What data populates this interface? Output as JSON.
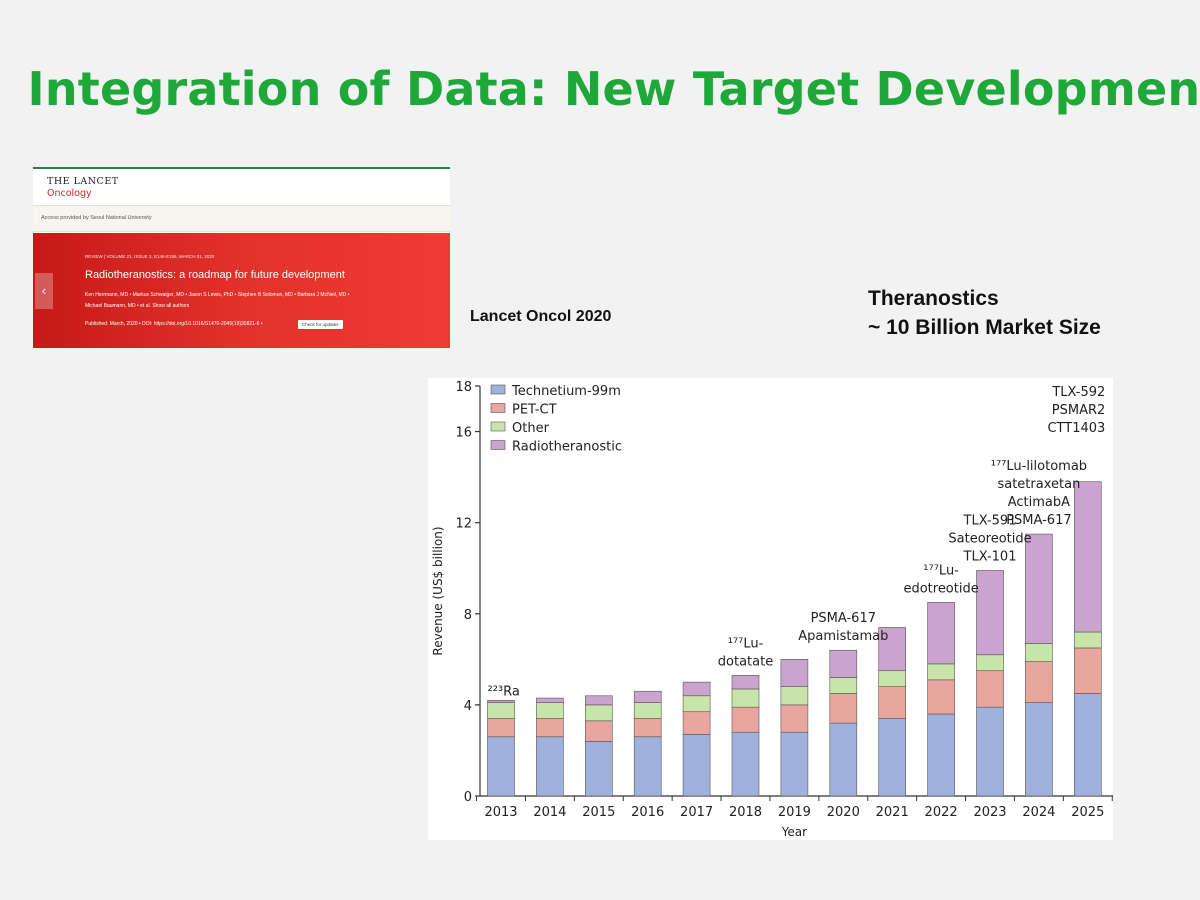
{
  "slide": {
    "title": "Integration of Data: New Target Development",
    "citation": "Lancet Oncol 2020",
    "market_line1": "Theranostics",
    "market_line2": "~ 10 Billion Market Size"
  },
  "lancet": {
    "brand": "THE LANCET",
    "brand_sub": "Oncology",
    "access": "Access provided by Seoul National University",
    "meta": "REVIEW | VOLUME 21, ISSUE 3, E146-E156, MARCH 01, 2020",
    "article_title": "Radiotheranostics: a roadmap for future development",
    "authors1": "Ken Herrmann, MD • Markus Schwaiger, MD • Jason S Lewis, PhD • Stephen B Solomon, MD • Barbara J McNeil, MD •",
    "authors2": "Michael Baumann, MD • et al.  Show all authors",
    "published": "Published: March, 2020 • DOI: https://doi.org/10.1016/S1470-2045(19)30821-6 •",
    "check_button": "Check for updates",
    "arrow": "‹"
  },
  "colors": {
    "title_green": "#1ea83a",
    "technetium": "#9fb1dc",
    "pet_ct": "#e9a69e",
    "other": "#c8e5a9",
    "radiotheranostic": "#caa3cf",
    "lancet_red": "#e3312b"
  },
  "chart_data": {
    "type": "bar",
    "stacked": true,
    "categories": [
      "2013",
      "2014",
      "2015",
      "2016",
      "2017",
      "2018",
      "2019",
      "2020",
      "2021",
      "2022",
      "2023",
      "2024",
      "2025"
    ],
    "series": [
      {
        "name": "Technetium-99m",
        "values": [
          2.6,
          2.6,
          2.4,
          2.6,
          2.7,
          2.8,
          2.8,
          3.2,
          3.4,
          3.6,
          3.9,
          4.1,
          4.5
        ]
      },
      {
        "name": "PET-CT",
        "values": [
          0.8,
          0.8,
          0.9,
          0.8,
          1.0,
          1.1,
          1.2,
          1.3,
          1.4,
          1.5,
          1.6,
          1.8,
          2.0
        ]
      },
      {
        "name": "Other",
        "values": [
          0.7,
          0.7,
          0.7,
          0.7,
          0.7,
          0.8,
          0.8,
          0.7,
          0.7,
          0.7,
          0.7,
          0.8,
          0.7
        ]
      },
      {
        "name": "Radiotheranostic",
        "values": [
          0.1,
          0.2,
          0.4,
          0.5,
          0.6,
          0.6,
          1.2,
          1.2,
          1.9,
          2.7,
          3.7,
          4.8,
          6.6
        ]
      }
    ],
    "xlabel": "Year",
    "ylabel": "Revenue (US$ billion)",
    "ylim": [
      0,
      18
    ],
    "yticks": [
      0,
      4,
      8,
      12,
      16,
      18
    ],
    "grid": false,
    "legend_position": "top-left",
    "annotations": [
      {
        "category": "2013",
        "lines": [
          "²²³Ra"
        ],
        "align": "left"
      },
      {
        "category": "2018",
        "lines": [
          "¹⁷⁷Lu-",
          "dotatate"
        ],
        "align": "center"
      },
      {
        "category": "2020",
        "lines": [
          "PSMA-617",
          "Apamistamab"
        ],
        "align": "center"
      },
      {
        "category": "2022",
        "lines": [
          "¹⁷⁷Lu-",
          "edotreotide"
        ],
        "align": "center"
      },
      {
        "category": "2023",
        "lines": [
          "TLX-591",
          "Sateoreotide",
          "TLX-101"
        ],
        "align": "center"
      },
      {
        "category": "2024",
        "lines": [
          "¹⁷⁷Lu-lilotomab",
          "satetraxetan",
          "ActimabA",
          "PSMA-617"
        ],
        "align": "center"
      },
      {
        "category": "2025",
        "lines": [
          "TLX-592",
          "PSMAR2",
          "CTT1403"
        ],
        "align": "right"
      }
    ]
  }
}
